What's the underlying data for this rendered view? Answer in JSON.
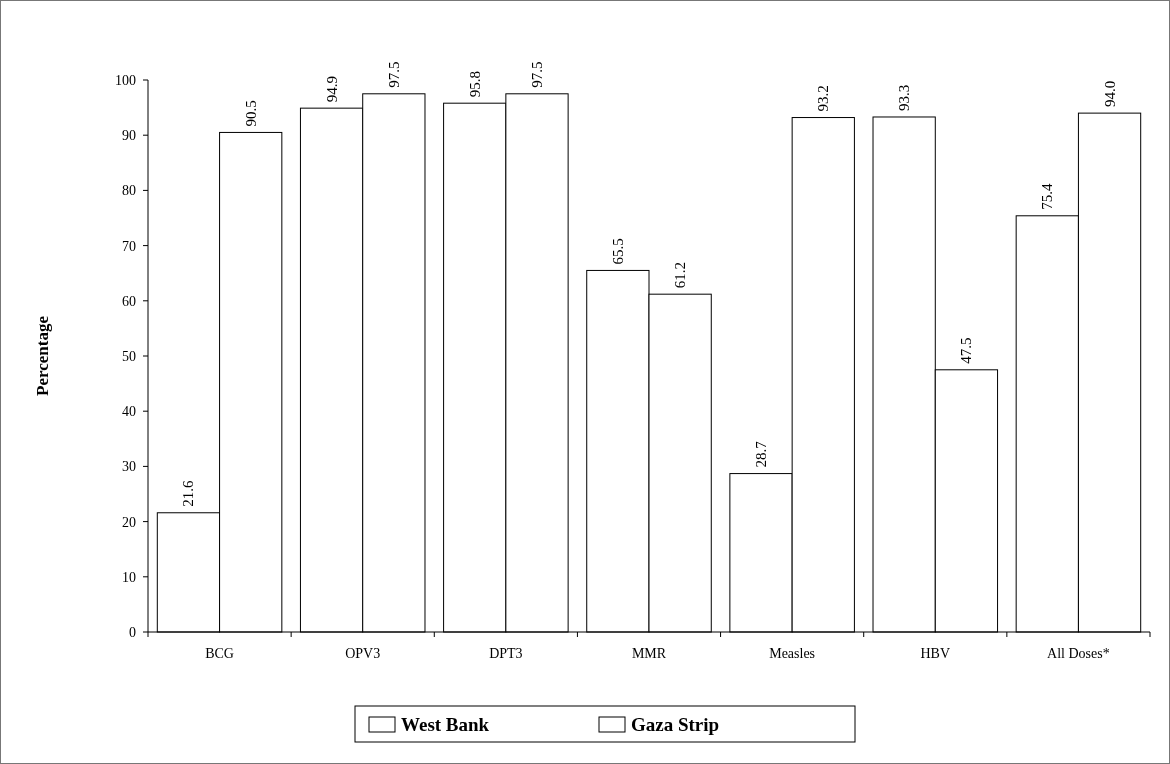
{
  "chart_data": {
    "type": "bar",
    "ylabel": "Percentage",
    "categories": [
      "BCG",
      "OPV3",
      "DPT3",
      "MMR",
      "Measles",
      "HBV",
      "All Doses*"
    ],
    "series": [
      {
        "name": "West Bank",
        "color": "#ffffff",
        "values": [
          21.6,
          94.9,
          95.8,
          65.5,
          28.7,
          93.3,
          75.4
        ],
        "value_labels": [
          "21.6",
          "94.9",
          "95.8",
          "65.5",
          "28.7",
          "93.3",
          "75.4"
        ]
      },
      {
        "name": "Gaza Strip",
        "color": "#ffffff",
        "values": [
          90.5,
          97.5,
          97.5,
          61.2,
          93.2,
          47.5,
          94.0
        ],
        "value_labels": [
          "90.5",
          "97.5",
          "97.5",
          "61.2",
          "93.2",
          "47.5",
          "94.0"
        ]
      }
    ],
    "ylim": [
      0,
      100
    ],
    "yticks": [
      0,
      10,
      20,
      30,
      40,
      50,
      60,
      70,
      80,
      90,
      100
    ],
    "grid": false,
    "legend": "bottom"
  }
}
